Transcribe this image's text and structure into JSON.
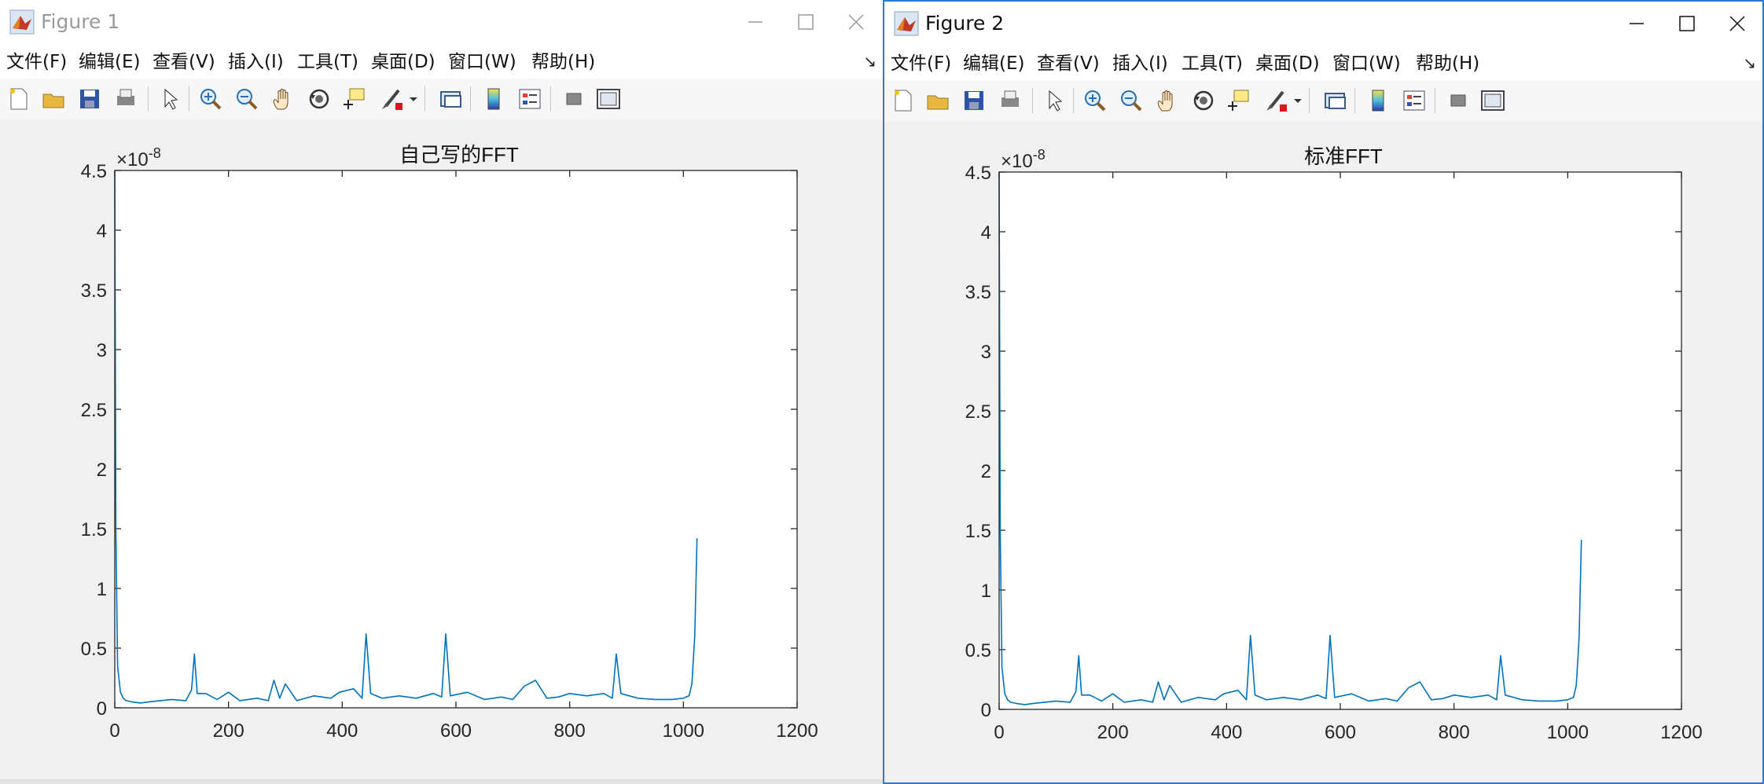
{
  "windows": [
    {
      "title": "Figure 1",
      "menus": [
        "文件(F)",
        "编辑(E)",
        "查看(V)",
        "插入(I)",
        "工具(T)",
        "桌面(D)",
        "窗口(W)",
        "帮助(H)"
      ],
      "active": false
    },
    {
      "title": "Figure 2",
      "menus": [
        "文件(F)",
        "编辑(E)",
        "查看(V)",
        "插入(I)",
        "工具(T)",
        "桌面(D)",
        "窗口(W)",
        "帮助(H)"
      ],
      "active": true
    }
  ],
  "toolbar_icons": [
    "new-figure-icon",
    "open-file-icon",
    "save-icon",
    "print-icon",
    "select-arrow-icon",
    "zoom-in-icon",
    "zoom-out-icon",
    "pan-hand-icon",
    "rotate-3d-icon",
    "data-cursor-icon",
    "brush-icon",
    "brush-dropdown-icon",
    "link-plot-icon",
    "insert-colorbar-icon",
    "insert-legend-icon",
    "hide-plot-tools-icon",
    "show-plot-tools-icon"
  ],
  "colors": {
    "line": "#0072bd",
    "accent_border": "#2b7ad6"
  },
  "chart_data": [
    {
      "type": "line",
      "title": "自己写的FFT",
      "exponent": "×10^-8",
      "exponent_base": "×10",
      "exponent_power": "-8",
      "xlim": [
        0,
        1200
      ],
      "ylim": [
        0,
        4.5
      ],
      "xticks": [
        "0",
        "200",
        "400",
        "600",
        "800",
        "1000",
        "1200"
      ],
      "yticks": [
        "0",
        "0.5",
        "1",
        "1.5",
        "2",
        "2.5",
        "3",
        "3.5",
        "4",
        "4.5"
      ],
      "series": [
        {
          "x": [
            0,
            2,
            5,
            10,
            15,
            20,
            30,
            45,
            60,
            80,
            100,
            125,
            135,
            140,
            145,
            160,
            180,
            200,
            220,
            250,
            270,
            280,
            290,
            300,
            320,
            350,
            380,
            395,
            420,
            435,
            442,
            450,
            470,
            500,
            530,
            560,
            575,
            582,
            590,
            620,
            650,
            680,
            700,
            720,
            740,
            760,
            780,
            800,
            830,
            860,
            875,
            882,
            890,
            920,
            950,
            980,
            1000,
            1010,
            1015,
            1020,
            1024
          ],
          "y": [
            4.5,
            1.5,
            0.35,
            0.13,
            0.08,
            0.06,
            0.05,
            0.04,
            0.05,
            0.06,
            0.07,
            0.06,
            0.15,
            0.45,
            0.12,
            0.12,
            0.07,
            0.13,
            0.06,
            0.08,
            0.06,
            0.23,
            0.08,
            0.2,
            0.06,
            0.1,
            0.08,
            0.13,
            0.16,
            0.08,
            0.62,
            0.12,
            0.08,
            0.1,
            0.08,
            0.12,
            0.09,
            0.62,
            0.1,
            0.13,
            0.07,
            0.09,
            0.07,
            0.18,
            0.23,
            0.08,
            0.09,
            0.12,
            0.1,
            0.12,
            0.08,
            0.45,
            0.12,
            0.08,
            0.07,
            0.07,
            0.08,
            0.1,
            0.2,
            0.6,
            1.42
          ]
        }
      ]
    },
    {
      "type": "line",
      "title": "标准FFT",
      "exponent": "×10^-8",
      "exponent_base": "×10",
      "exponent_power": "-8",
      "xlim": [
        0,
        1200
      ],
      "ylim": [
        0,
        4.5
      ],
      "xticks": [
        "0",
        "200",
        "400",
        "600",
        "800",
        "1000",
        "1200"
      ],
      "yticks": [
        "0",
        "0.5",
        "1",
        "1.5",
        "2",
        "2.5",
        "3",
        "3.5",
        "4",
        "4.5"
      ],
      "series": [
        {
          "x": [
            0,
            2,
            5,
            10,
            15,
            20,
            30,
            45,
            60,
            80,
            100,
            125,
            135,
            140,
            145,
            160,
            180,
            200,
            220,
            250,
            270,
            280,
            290,
            300,
            320,
            350,
            380,
            395,
            420,
            435,
            442,
            450,
            470,
            500,
            530,
            560,
            575,
            582,
            590,
            620,
            650,
            680,
            700,
            720,
            740,
            760,
            780,
            800,
            830,
            860,
            875,
            882,
            890,
            920,
            950,
            980,
            1000,
            1010,
            1015,
            1020,
            1024
          ],
          "y": [
            4.5,
            1.5,
            0.35,
            0.13,
            0.08,
            0.06,
            0.05,
            0.04,
            0.05,
            0.06,
            0.07,
            0.06,
            0.15,
            0.45,
            0.12,
            0.12,
            0.07,
            0.13,
            0.06,
            0.08,
            0.06,
            0.23,
            0.08,
            0.2,
            0.06,
            0.1,
            0.08,
            0.13,
            0.16,
            0.08,
            0.62,
            0.12,
            0.08,
            0.1,
            0.08,
            0.12,
            0.09,
            0.62,
            0.1,
            0.13,
            0.07,
            0.09,
            0.07,
            0.18,
            0.23,
            0.08,
            0.09,
            0.12,
            0.1,
            0.12,
            0.08,
            0.45,
            0.12,
            0.08,
            0.07,
            0.07,
            0.08,
            0.1,
            0.2,
            0.6,
            1.42
          ]
        }
      ]
    }
  ]
}
